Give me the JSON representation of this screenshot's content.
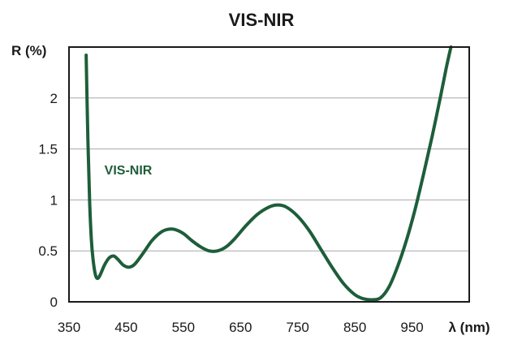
{
  "chart_data": {
    "type": "line",
    "title": "VIS-NIR",
    "ylabel": "R (%)",
    "xlabel": "λ (nm)",
    "xlim": [
      350,
      1050
    ],
    "ylim": [
      0,
      2.5
    ],
    "grid": true,
    "x_ticks": [
      {
        "value": 350,
        "label": "350"
      },
      {
        "value": 450,
        "label": "450"
      },
      {
        "value": 550,
        "label": "550"
      },
      {
        "value": 650,
        "label": "650"
      },
      {
        "value": 750,
        "label": "750"
      },
      {
        "value": 850,
        "label": "850"
      },
      {
        "value": 950,
        "label": "950"
      }
    ],
    "y_ticks": [
      {
        "value": 0,
        "label": "0"
      },
      {
        "value": 0.5,
        "label": "0.5"
      },
      {
        "value": 1,
        "label": "1"
      },
      {
        "value": 1.5,
        "label": "1.5"
      },
      {
        "value": 2,
        "label": "2"
      }
    ],
    "series": [
      {
        "name": "VIS-NIR",
        "color": "#1e5e3a",
        "points": [
          [
            380,
            2.42
          ],
          [
            383,
            1.6
          ],
          [
            386,
            1.0
          ],
          [
            389,
            0.62
          ],
          [
            392,
            0.42
          ],
          [
            396,
            0.27
          ],
          [
            400,
            0.23
          ],
          [
            405,
            0.27
          ],
          [
            412,
            0.36
          ],
          [
            420,
            0.43
          ],
          [
            428,
            0.45
          ],
          [
            435,
            0.42
          ],
          [
            445,
            0.36
          ],
          [
            455,
            0.34
          ],
          [
            465,
            0.37
          ],
          [
            480,
            0.48
          ],
          [
            495,
            0.6
          ],
          [
            510,
            0.68
          ],
          [
            522,
            0.71
          ],
          [
            535,
            0.71
          ],
          [
            550,
            0.67
          ],
          [
            565,
            0.6
          ],
          [
            580,
            0.54
          ],
          [
            595,
            0.5
          ],
          [
            610,
            0.5
          ],
          [
            625,
            0.54
          ],
          [
            640,
            0.62
          ],
          [
            660,
            0.75
          ],
          [
            680,
            0.86
          ],
          [
            700,
            0.93
          ],
          [
            715,
            0.95
          ],
          [
            730,
            0.93
          ],
          [
            750,
            0.84
          ],
          [
            770,
            0.7
          ],
          [
            790,
            0.52
          ],
          [
            810,
            0.34
          ],
          [
            830,
            0.18
          ],
          [
            850,
            0.07
          ],
          [
            865,
            0.03
          ],
          [
            880,
            0.02
          ],
          [
            895,
            0.04
          ],
          [
            910,
            0.15
          ],
          [
            925,
            0.35
          ],
          [
            940,
            0.6
          ],
          [
            955,
            0.9
          ],
          [
            970,
            1.25
          ],
          [
            985,
            1.62
          ],
          [
            1000,
            2.02
          ],
          [
            1010,
            2.3
          ],
          [
            1018,
            2.5
          ]
        ]
      }
    ],
    "annotations": [
      {
        "text": "VIS-NIR",
        "x": 412,
        "y": 1.25
      }
    ]
  }
}
